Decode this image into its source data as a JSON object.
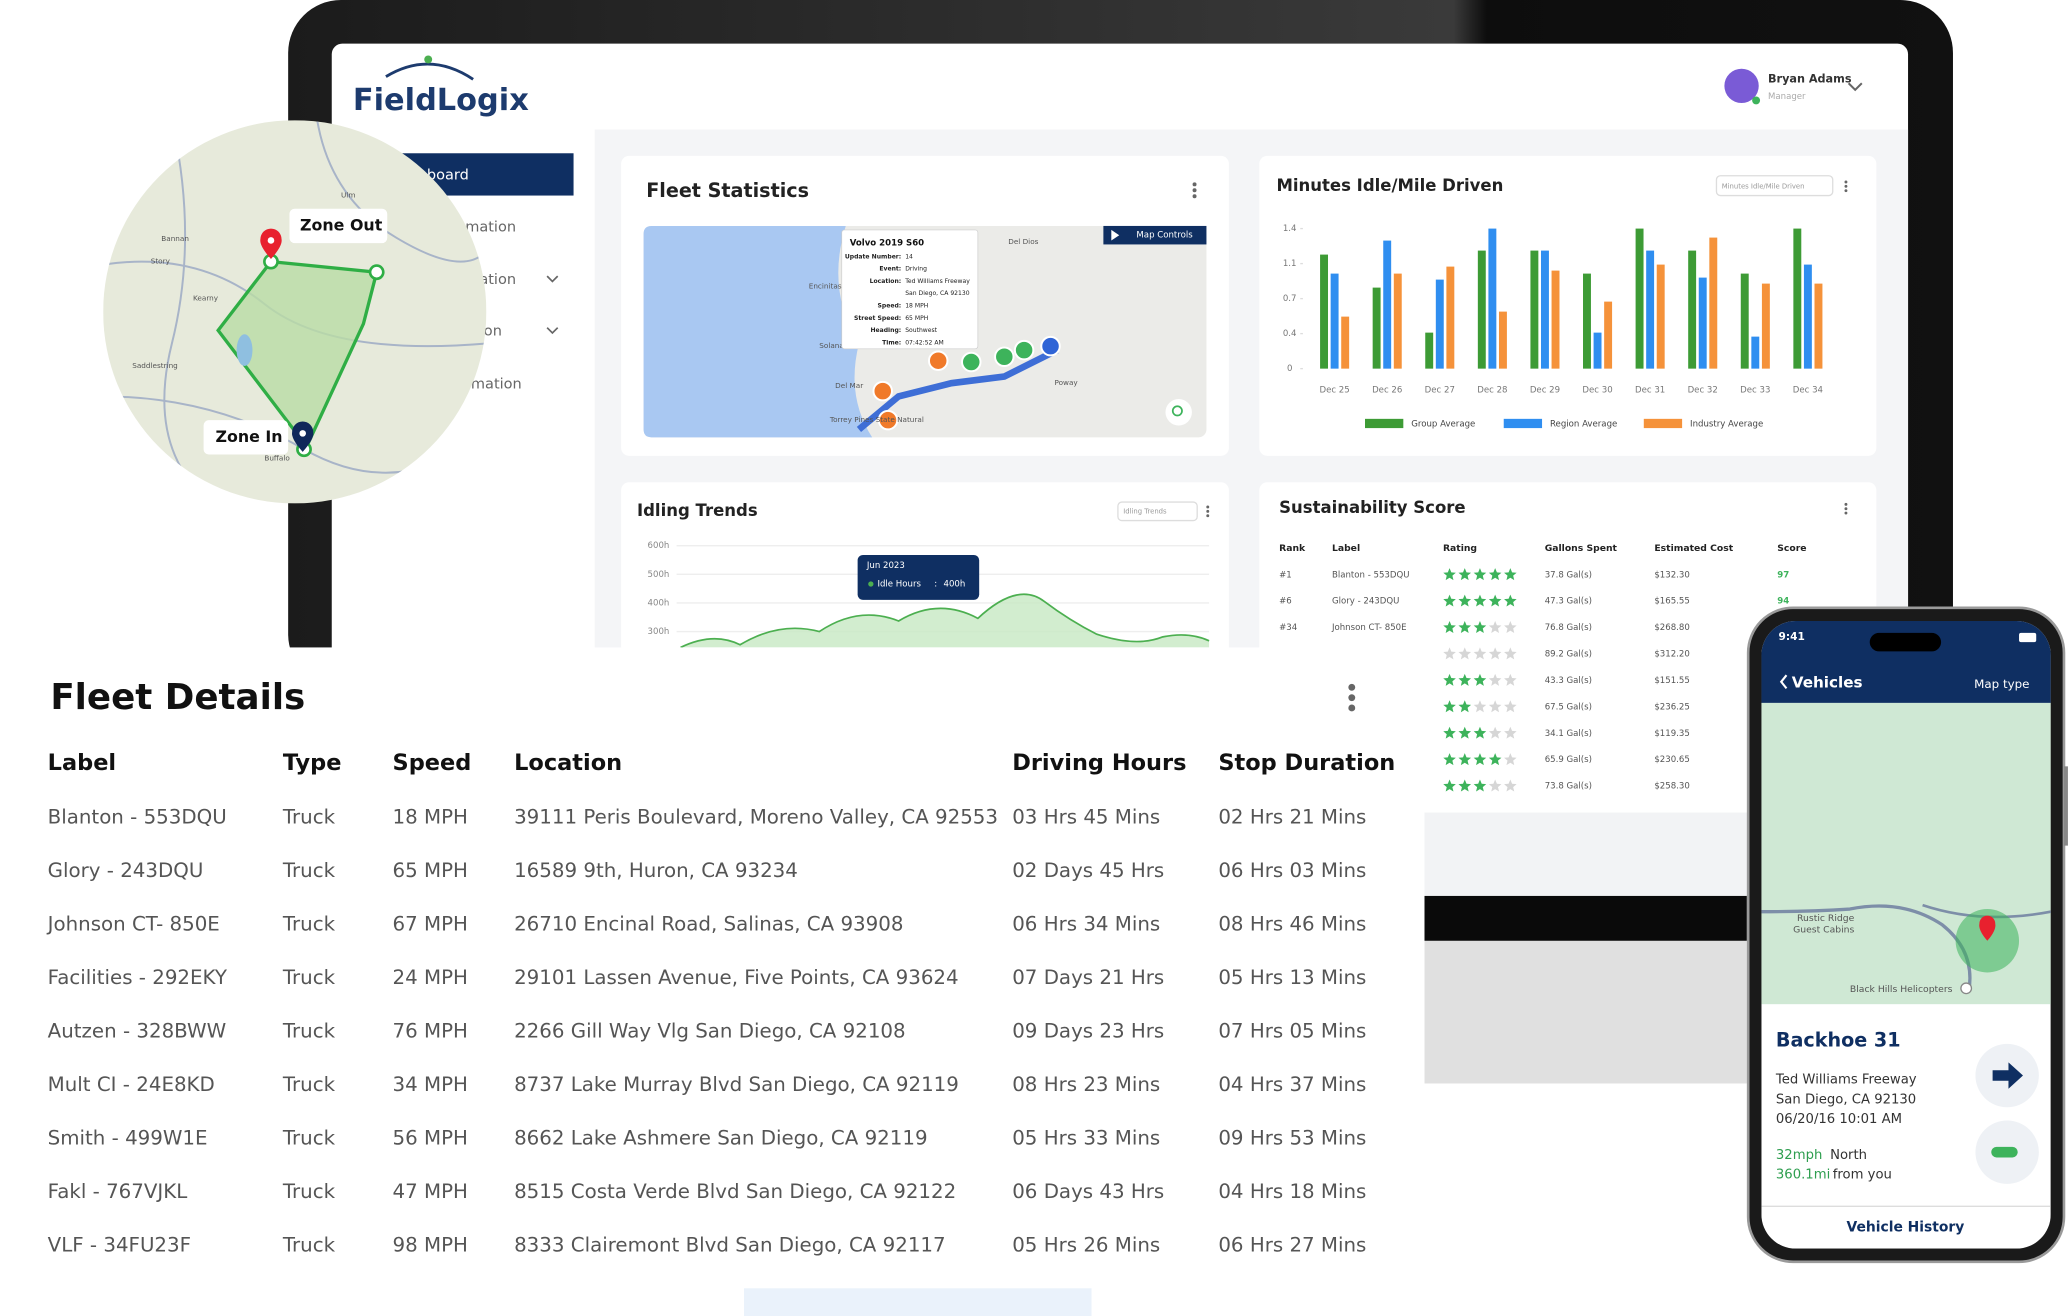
{
  "brand": "FieldLogix",
  "user": {
    "name": "Bryan Adams",
    "role": "Manager"
  },
  "sidebar": [
    "board",
    "mation",
    "mation",
    "ation",
    "rmation"
  ],
  "zone_map": {
    "zone_out": "Zone Out",
    "zone_in": "Zone In",
    "places": [
      "Ulm",
      "Bannan",
      "Story",
      "Kearny",
      "Saddlestring",
      "Buffalo"
    ]
  },
  "fleet_statistics": {
    "title": "Fleet Statistics",
    "map_controls": "Map Controls",
    "places": [
      "Del Dios",
      "Encinitas",
      "Solana",
      "Del Mar",
      "Poway",
      "Torrey Pines State Natural"
    ],
    "popup": {
      "title": "Volvo 2019 S60",
      "rows": [
        [
          "Update Number:",
          "14"
        ],
        [
          "Event:",
          "Driving"
        ],
        [
          "Location:",
          "Ted Williams Freeway"
        ],
        [
          "",
          "San Diego, CA 92130"
        ],
        [
          "Speed:",
          "18 MPH"
        ],
        [
          "Street Speed:",
          "65 MPH"
        ],
        [
          "Heading:",
          "Southwest"
        ],
        [
          "Time:",
          "07:42:52 AM"
        ]
      ]
    }
  },
  "chart_data": [
    {
      "type": "bar",
      "title": "Minutes Idle/Mile Driven",
      "dropdown": "Minutes Idle/Mile Driven",
      "categories": [
        "Dec 25",
        "Dec 26",
        "Dec 27",
        "Dec 28",
        "Dec 29",
        "Dec 30",
        "Dec 31",
        "Dec 32",
        "Dec 33",
        "Dec 34"
      ],
      "series": [
        {
          "name": "Group Average",
          "color": "#3d9b35",
          "values": [
            1.14,
            0.81,
            0.36,
            1.18,
            1.18,
            0.95,
            1.4,
            1.18,
            0.95,
            1.4
          ]
        },
        {
          "name": "Region Average",
          "color": "#2f8ef0",
          "values": [
            0.95,
            1.28,
            0.89,
            1.4,
            1.18,
            0.36,
            1.18,
            0.91,
            0.32,
            1.04
          ]
        },
        {
          "name": "Industry Average",
          "color": "#f5923a",
          "values": [
            0.52,
            0.95,
            1.02,
            0.57,
            0.98,
            0.67,
            1.04,
            1.31,
            0.85,
            0.85
          ]
        }
      ],
      "ylim": [
        0,
        1.4
      ],
      "yticks": [
        0,
        {
          "value": 0.35,
          "label": "0.4"
        },
        0.7,
        {
          "value": 1.05,
          "label": "1.1"
        },
        1.4
      ],
      "grid": false,
      "legend": "bottom"
    },
    {
      "type": "line",
      "title": "Idling Trends",
      "dropdown": "Idling Trends",
      "ylim": [
        300,
        600
      ],
      "yticks": [
        {
          "value": 600,
          "label": "600h"
        },
        {
          "value": 500,
          "label": "500h"
        },
        {
          "value": 400,
          "label": "400h"
        },
        {
          "value": 300,
          "label": "300h"
        }
      ],
      "tooltip": {
        "x": "Jun 2023",
        "series": "Idle Hours",
        "value": 400,
        "label": "400h"
      },
      "color": "#4caf50",
      "grid": true
    }
  ],
  "sustainability": {
    "title": "Sustainability Score",
    "columns": [
      "Rank",
      "Label",
      "Rating",
      "Gallons Spent",
      "Estimated Cost",
      "Score"
    ],
    "rows": [
      {
        "rank": "#1",
        "label": "Blanton - 553DQU",
        "rating": 5,
        "gallons": "37.8 Gal(s)",
        "cost": "$132.30",
        "score": 97
      },
      {
        "rank": "#6",
        "label": "Glory - 243DQU",
        "rating": 5,
        "gallons": "47.3 Gal(s)",
        "cost": "$165.55",
        "score": 94
      },
      {
        "rank": "#34",
        "label": "Johnson CT- 850E",
        "rating": 3,
        "gallons": "76.8 Gal(s)",
        "cost": "$268.80"
      },
      {
        "rating": 0,
        "gallons": "89.2 Gal(s)",
        "cost": "$312.20"
      },
      {
        "rating": 3,
        "gallons": "43.3 Gal(s)",
        "cost": "$151.55"
      },
      {
        "rating": 2,
        "gallons": "67.5 Gal(s)",
        "cost": "$236.25"
      },
      {
        "rating": 3,
        "gallons": "34.1 Gal(s)",
        "cost": "$119.35"
      },
      {
        "rating": 4,
        "gallons": "65.9 Gal(s)",
        "cost": "$230.65"
      },
      {
        "rating": 3,
        "gallons": "73.8 Gal(s)",
        "cost": "$258.30"
      }
    ]
  },
  "fleet_details": {
    "title": "Fleet Details",
    "columns": [
      "Label",
      "Type",
      "Speed",
      "Location",
      "Driving Hours",
      "Stop Duration"
    ],
    "rows": [
      [
        "Blanton - 553DQU",
        "Truck",
        "18 MPH",
        "39111 Peris Boulevard, Moreno Valley, CA 92553",
        "03 Hrs 45 Mins",
        "02 Hrs 21 Mins"
      ],
      [
        "Glory - 243DQU",
        "Truck",
        "65 MPH",
        "16589 9th, Huron, CA 93234",
        "02 Days 45 Hrs",
        "06 Hrs 03 Mins"
      ],
      [
        "Johnson CT- 850E",
        "Truck",
        "67 MPH",
        "26710 Encinal Road, Salinas, CA 93908",
        "06 Hrs 34 Mins",
        "08 Hrs 46 Mins"
      ],
      [
        "Facilities - 292EKY",
        "Truck",
        "24 MPH",
        "29101 Lassen Avenue, Five Points, CA 93624",
        "07 Days 21 Hrs",
        "05 Hrs 13 Mins"
      ],
      [
        "Autzen - 328BWW",
        "Truck",
        "76 MPH",
        "2266 Gill Way Vlg San Diego, CA 92108",
        "09 Days 23 Hrs",
        "07 Hrs 05 Mins"
      ],
      [
        "Mult CI - 24E8KD",
        "Truck",
        "34 MPH",
        "8737 Lake Murray Blvd San Diego, CA 92119",
        "08 Hrs 23 Mins",
        "04 Hrs 37 Mins"
      ],
      [
        "Smith - 499W1E",
        "Truck",
        "56 MPH",
        "8662 Lake Ashmere San Diego, CA 92119",
        "05 Hrs 33 Mins",
        "09 Hrs 53 Mins"
      ],
      [
        "Fakl - 767VJKL",
        "Truck",
        "47 MPH",
        "8515 Costa Verde Blvd San Diego, CA 92122",
        "06 Days 43 Hrs",
        "04 Hrs 18 Mins"
      ],
      [
        "VLF - 34FU23F",
        "Truck",
        "98 MPH",
        "8333 Clairemont Blvd San Diego, CA 92117",
        "05 Hrs 26 Mins",
        "06 Hrs 27 Mins"
      ]
    ]
  },
  "phone": {
    "time": "9:41",
    "back": "Vehicles",
    "map_type": "Map type",
    "places": [
      "Rustic Ridge",
      "Guest Cabins",
      "Black Hills Helicopters"
    ],
    "vehicle": "Backhoe 31",
    "address": [
      "Ted Williams Freeway",
      "San Diego, CA 92130",
      "06/20/16 10:01 AM"
    ],
    "speed": "32mph",
    "heading": "North",
    "distance": "360.1mi",
    "distance_note": "from you",
    "button": "Vehicle History"
  }
}
